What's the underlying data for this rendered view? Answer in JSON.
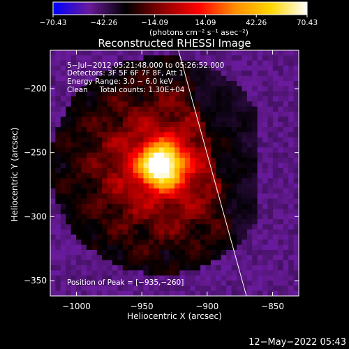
{
  "colorbar": {
    "tick_labels": [
      "-70.43",
      "-42.26",
      "-14.09",
      "14.09",
      "42.26",
      "70.43"
    ],
    "unit_label": "(photons cm⁻² s⁻¹ asec⁻²)",
    "range": [
      -70.43,
      70.43
    ],
    "colormap": [
      "#0000ff",
      "#6a1b9a",
      "#000000",
      "#8b0000",
      "#ff0000",
      "#ff8c00",
      "#ffd700",
      "#ffffff"
    ]
  },
  "chart_data": {
    "type": "heatmap",
    "title": "Reconstructed RHESSI Image",
    "xlabel": "Heliocentric X (arcsec)",
    "ylabel": "Heliocentric Y (arcsec)",
    "xlim": [
      -1020,
      -830
    ],
    "ylim": [
      -362,
      -170
    ],
    "x_ticks": [
      -1000,
      -950,
      -900,
      -850
    ],
    "x_tick_labels": [
      "−1000",
      "−950",
      "−900",
      "−850"
    ],
    "y_ticks": [
      -200,
      -250,
      -300,
      -350
    ],
    "y_tick_labels": [
      "−200",
      "−250",
      "−300",
      "−350"
    ],
    "peak": {
      "x": -935,
      "y": -260
    },
    "limb_line": {
      "x": [
        -922,
        -870
      ],
      "y": [
        -170,
        -362
      ]
    },
    "info": [
      "5−Jul−2012 05:21:48.000 to 05:26:52.000",
      "Detectors: 3F 5F 6F 7F 8F, Att 1",
      "Energy Range: 3.0 − 6.0 keV",
      "Clean     Total counts: 1.30E+04"
    ],
    "peak_label": "Position of Peak = [−935,−260]"
  },
  "footer": {
    "timestamp": "12−May−2022 05:43"
  }
}
